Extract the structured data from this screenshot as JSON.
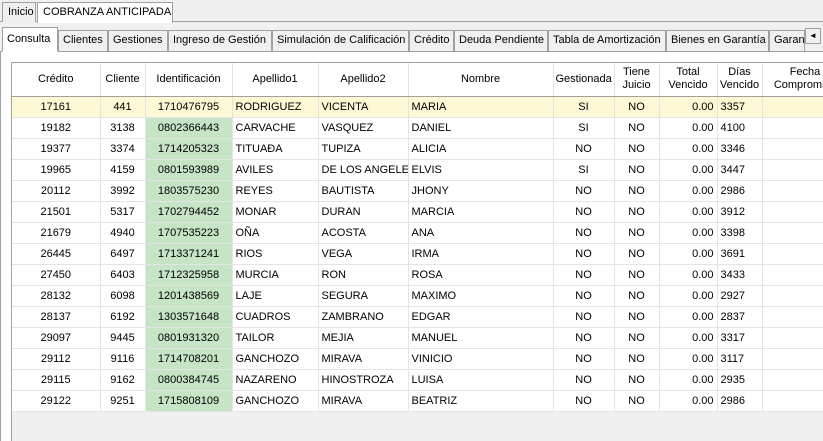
{
  "top_tabs": [
    {
      "label": "Inicio"
    },
    {
      "label": "COBRANZA ANTICIPADA"
    }
  ],
  "sub_tabs": [
    {
      "label": "Consulta"
    },
    {
      "label": "Clientes"
    },
    {
      "label": "Gestiones"
    },
    {
      "label": "Ingreso de Gestión"
    },
    {
      "label": "Simulación de Calificación"
    },
    {
      "label": "Crédito"
    },
    {
      "label": "Deuda Pendiente"
    },
    {
      "label": "Tabla de Amortización"
    },
    {
      "label": "Bienes en Garantía"
    },
    {
      "label": "Garan"
    }
  ],
  "scroll_arrow": "◄",
  "grid": {
    "headers": [
      "Crédito",
      "Cliente",
      "Identificación",
      "Apellido1",
      "Apellido2",
      "Nombre",
      "Gestionada",
      "Tiene Juicio",
      "Total Vencido",
      "Días Vencido",
      "Fecha Compromiso"
    ],
    "rows": [
      [
        "17161",
        "441",
        "1710476795",
        "RODRIGUEZ",
        "VICENTA",
        "MARIA",
        "SI",
        "NO",
        "0.00",
        "3357",
        ""
      ],
      [
        "19182",
        "3138",
        "0802366443",
        "CARVACHE",
        "VASQUEZ",
        "DANIEL",
        "SI",
        "NO",
        "0.00",
        "4100",
        ""
      ],
      [
        "19377",
        "3374",
        "1714205323",
        "TITUAÐA",
        "TUPIZA",
        "ALICIA",
        "NO",
        "NO",
        "0.00",
        "3346",
        ""
      ],
      [
        "19965",
        "4159",
        "0801593989",
        "AVILES",
        "DE LOS ANGELES",
        "ELVIS",
        "SI",
        "NO",
        "0.00",
        "3447",
        ""
      ],
      [
        "20112",
        "3992",
        "1803575230",
        "REYES",
        "BAUTISTA",
        "JHONY",
        "NO",
        "NO",
        "0.00",
        "2986",
        ""
      ],
      [
        "21501",
        "5317",
        "1702794452",
        "MONAR",
        "DURAN",
        "MARCIA",
        "NO",
        "NO",
        "0.00",
        "3912",
        ""
      ],
      [
        "21679",
        "4940",
        "1707535223",
        "OÑA",
        "ACOSTA",
        "ANA",
        "NO",
        "NO",
        "0.00",
        "3398",
        ""
      ],
      [
        "26445",
        "6497",
        "1713371241",
        "RIOS",
        "VEGA",
        "IRMA",
        "NO",
        "NO",
        "0.00",
        "3691",
        ""
      ],
      [
        "27450",
        "6403",
        "1712325958",
        "MURCIA",
        "RON",
        "ROSA",
        "NO",
        "NO",
        "0.00",
        "3433",
        ""
      ],
      [
        "28132",
        "6098",
        "1201438569",
        "LAJE",
        "SEGURA",
        "MAXIMO",
        "NO",
        "NO",
        "0.00",
        "2927",
        ""
      ],
      [
        "28137",
        "6192",
        "1303571648",
        "CUADROS",
        "ZAMBRANO",
        "EDGAR",
        "NO",
        "NO",
        "0.00",
        "2837",
        ""
      ],
      [
        "29097",
        "9445",
        "0801931320",
        "TAILOR",
        "MEJIA",
        "MANUEL",
        "NO",
        "NO",
        "0.00",
        "3317",
        ""
      ],
      [
        "29112",
        "9116",
        "1714708201",
        "GANCHOZO",
        "MIRAVA",
        "VINICIO",
        "NO",
        "NO",
        "0.00",
        "3117",
        ""
      ],
      [
        "29115",
        "9162",
        "0800384745",
        "NAZARENO",
        "HINOSTROZA",
        "LUISA",
        "NO",
        "NO",
        "0.00",
        "2935",
        ""
      ],
      [
        "29122",
        "9251",
        "1715808109",
        "GANCHOZO",
        "MIRAVA",
        "BEATRIZ",
        "NO",
        "NO",
        "0.00",
        "2986",
        ""
      ]
    ]
  }
}
